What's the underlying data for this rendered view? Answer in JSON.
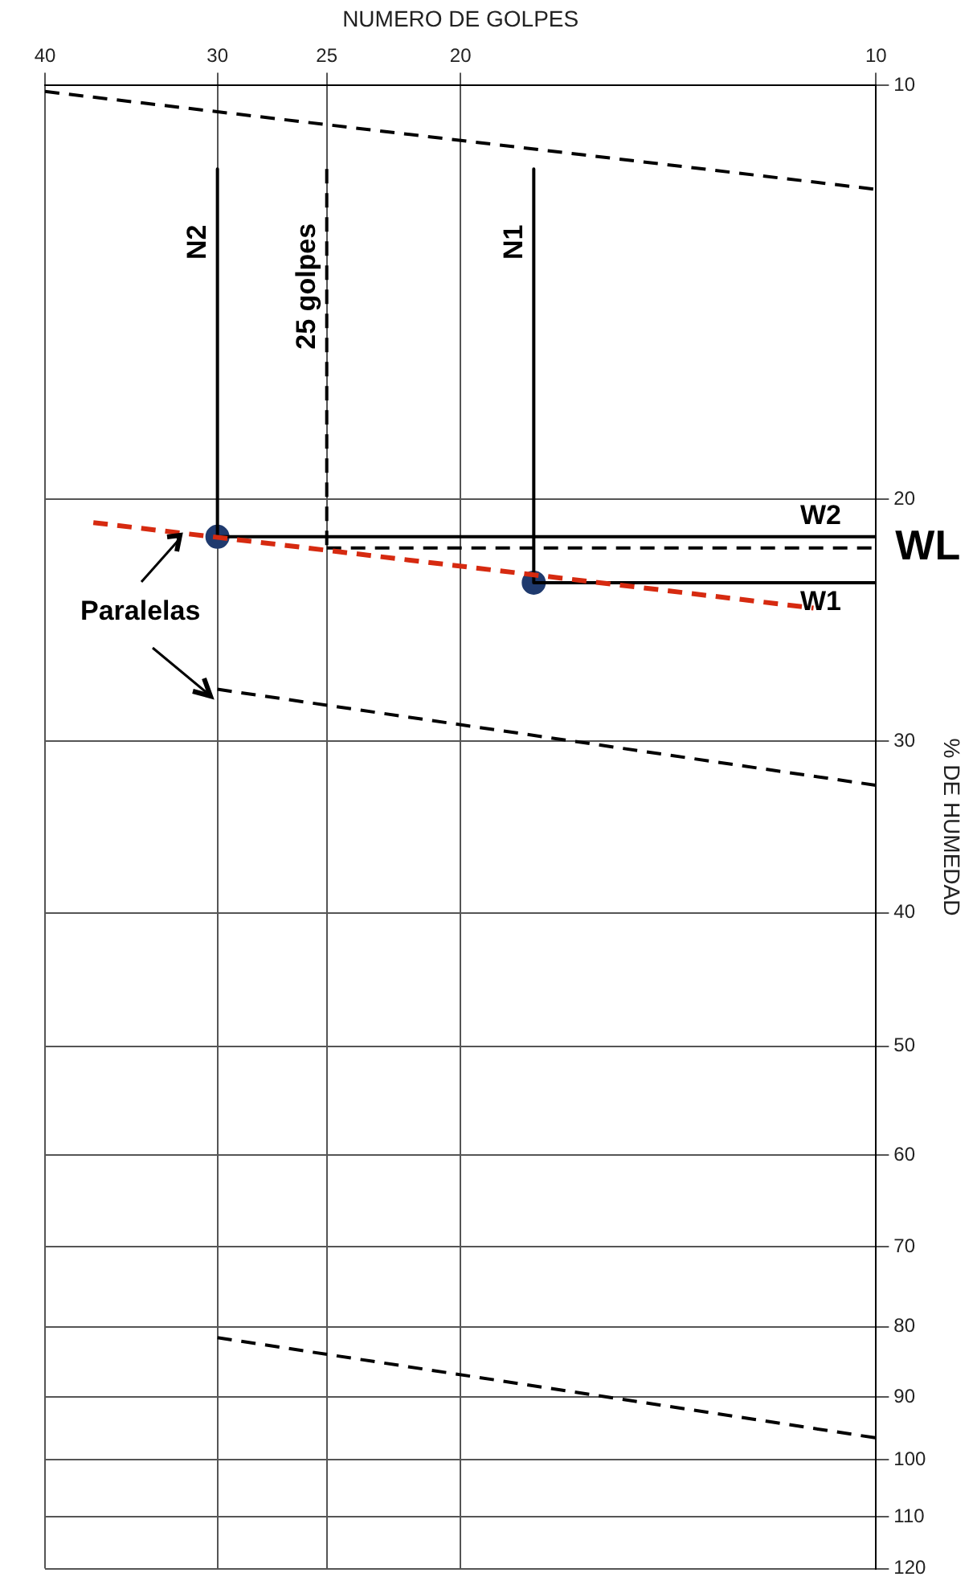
{
  "chart_data": {
    "type": "line",
    "xlabel": "NUMERO DE GOLPES",
    "ylabel": "% DE HUMEDAD",
    "log": "xy",
    "xlim": [
      40,
      10
    ],
    "ylim": [
      120,
      10
    ],
    "xticks": [
      40,
      30,
      25,
      20,
      10
    ],
    "yticks": [
      10,
      20,
      30,
      40,
      50,
      60,
      70,
      80,
      90,
      100,
      110,
      120
    ],
    "grid": true,
    "legend": false,
    "marker": "none",
    "series": [
      {
        "x": [
          40,
          10
        ],
        "values": [
          10.1,
          11.9
        ],
        "color": "#000000",
        "line_style": "dashed"
      },
      {
        "x": [
          30,
          10
        ],
        "values": [
          27.5,
          32.3
        ],
        "color": "#000000",
        "line_style": "dashed"
      },
      {
        "x": [
          30,
          10
        ],
        "values": [
          81.5,
          96.4
        ],
        "color": "#000000",
        "line_style": "dashed"
      },
      {
        "x": [
          36.9,
          11.1
        ],
        "values": [
          20.8,
          24.0
        ],
        "color": "#d62a10",
        "line_style": "dashed"
      },
      {
        "x": [
          30,
          30
        ],
        "values": [
          11.5,
          21.3
        ],
        "color": "#000000",
        "line_style": "solid"
      },
      {
        "x": [
          17.7,
          17.7
        ],
        "values": [
          11.5,
          23.0
        ],
        "color": "#000000",
        "line_style": "solid"
      },
      {
        "x": [
          30,
          10
        ],
        "values": [
          21.3,
          21.3
        ],
        "color": "#000000",
        "line_style": "solid"
      },
      {
        "x": [
          17.7,
          10
        ],
        "values": [
          23.0,
          23.0
        ],
        "color": "#000000",
        "line_style": "solid"
      },
      {
        "x": [
          25,
          25
        ],
        "values": [
          11.5,
          21.7
        ],
        "color": "#000000",
        "line_style": "dashed"
      },
      {
        "x": [
          25,
          10
        ],
        "values": [
          21.7,
          21.7
        ],
        "color": "#000000",
        "line_style": "dashed"
      },
      {
        "type": "scatter",
        "x": [
          30,
          17.7
        ],
        "values": [
          21.3,
          23.0
        ],
        "color": "#1f3a6e",
        "marker": "circle"
      }
    ],
    "annotations": [
      {
        "text": "N2",
        "x": 30,
        "y": 13
      },
      {
        "text": "N1",
        "x": 17.7,
        "y": 13
      },
      {
        "text": "25 golpes",
        "x": 25,
        "y": 14
      },
      {
        "text": "W2",
        "x": 10.6,
        "y": 21.3
      },
      {
        "text": "W1",
        "x": 10.6,
        "y": 23.0
      },
      {
        "text": "WL",
        "x": 10,
        "y": 21.7
      },
      "Paralelas"
    ]
  }
}
